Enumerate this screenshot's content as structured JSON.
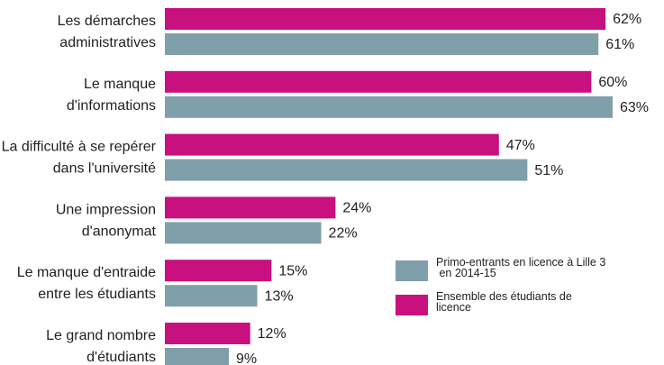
{
  "chart_data": {
    "type": "bar",
    "orientation": "horizontal",
    "categories": [
      "Les démarches\nadministratives",
      "Le manque\nd'informations",
      "La difficulté à se repérer\ndans l'université",
      "Une impression\nd'anonymat",
      "Le manque d'entraide\nentre les étudiants",
      "Le grand nombre\nd'étudiants"
    ],
    "series": [
      {
        "name": "Primo-entrants en licence à Lille 3\n en 2014-15",
        "color": "#7f9faa",
        "values": [
          61,
          63,
          51,
          22,
          13,
          9
        ],
        "value_labels": [
          "61%",
          "63%",
          "51%",
          "22%",
          "13%",
          "9%"
        ]
      },
      {
        "name": "Ensemble des étudiants de\nlicence",
        "color": "#c8107f",
        "values": [
          62,
          60,
          47,
          24,
          15,
          12
        ],
        "value_labels": [
          "62%",
          "60%",
          "47%",
          "24%",
          "15%",
          "12%"
        ]
      }
    ]
  }
}
